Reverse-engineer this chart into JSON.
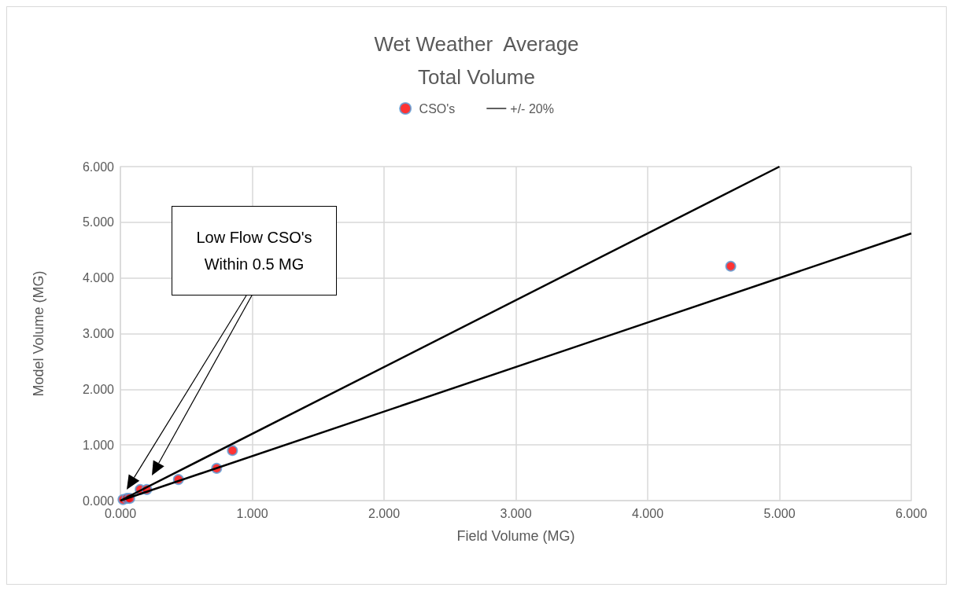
{
  "chart_data": {
    "type": "scatter",
    "title": "Wet Weather  Average\nTotal Volume",
    "xlabel": "Field Volume (MG)",
    "ylabel": "Model Volume (MG)",
    "annotations": [
      "Low Flow CSO's\nWithin 0.5 MG"
    ],
    "series": [
      {
        "name": "CSO's",
        "color": "#ff0000",
        "x": [
          0.02,
          0.05,
          0.07,
          0.15,
          0.2,
          0.44,
          0.73,
          0.85,
          4.63
        ],
        "values": [
          0.02,
          0.04,
          0.04,
          0.2,
          0.2,
          0.38,
          0.58,
          0.9,
          4.21
        ]
      },
      {
        "name": "+/- 20%",
        "type": "line",
        "color": "#000000",
        "x": [
          0,
          5,
          null,
          0,
          6
        ],
        "values": [
          0,
          6,
          null,
          0,
          4.8
        ],
        "marker": "none"
      }
    ],
    "xlim": [
      0,
      6
    ],
    "ylim": [
      0,
      6
    ],
    "xticks": [
      {
        "value": 0,
        "label": "0.000"
      },
      {
        "value": 1,
        "label": "1.000"
      },
      {
        "value": 2,
        "label": "2.000"
      },
      {
        "value": 3,
        "label": "3.000"
      },
      {
        "value": 4,
        "label": "4.000"
      },
      {
        "value": 5,
        "label": "5.000"
      },
      {
        "value": 6,
        "label": "6.000"
      }
    ],
    "yticks": [
      {
        "value": 0,
        "label": "0.000"
      },
      {
        "value": 1,
        "label": "1.000"
      },
      {
        "value": 2,
        "label": "2.000"
      },
      {
        "value": 3,
        "label": "3.000"
      },
      {
        "value": 4,
        "label": "4.000"
      },
      {
        "value": 5,
        "label": "5.000"
      },
      {
        "value": 6,
        "label": "6.000"
      }
    ],
    "grid": true,
    "legend": "top",
    "marker": "circle",
    "line_style": "solid"
  }
}
